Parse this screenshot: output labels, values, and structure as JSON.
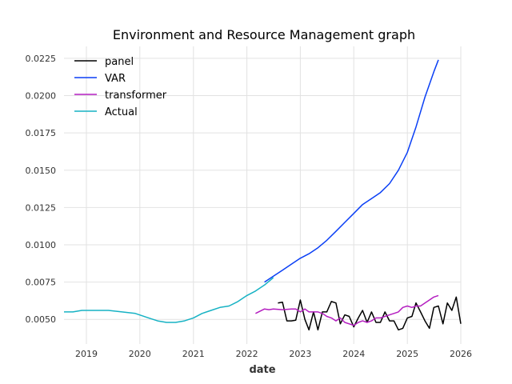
{
  "chart_data": {
    "type": "line",
    "title": "Environment and Resource Management graph",
    "xlabel": "date",
    "ylabel": "",
    "x_axis": {
      "type": "date",
      "xlim": [
        "2018-08-01",
        "2026-01-01"
      ],
      "ticks": [
        {
          "value": "2019-01-01",
          "label": "2019"
        },
        {
          "value": "2020-01-01",
          "label": "2020"
        },
        {
          "value": "2021-01-01",
          "label": "2021"
        },
        {
          "value": "2022-01-01",
          "label": "2022"
        },
        {
          "value": "2023-01-01",
          "label": "2023"
        },
        {
          "value": "2024-01-01",
          "label": "2024"
        },
        {
          "value": "2025-01-01",
          "label": "2025"
        },
        {
          "value": "2026-01-01",
          "label": "2026"
        }
      ]
    },
    "y_axis": {
      "ylim": [
        0.00335,
        0.0233
      ],
      "ticks": [
        {
          "value": 0.005,
          "label": "0.0050"
        },
        {
          "value": 0.0075,
          "label": "0.0075"
        },
        {
          "value": 0.01,
          "label": "0.0100"
        },
        {
          "value": 0.0125,
          "label": "0.0125"
        },
        {
          "value": 0.015,
          "label": "0.0150"
        },
        {
          "value": 0.0175,
          "label": "0.0175"
        },
        {
          "value": 0.02,
          "label": "0.0200"
        },
        {
          "value": 0.0225,
          "label": "0.0225"
        }
      ]
    },
    "grid": true,
    "legend_position": "top-left",
    "series": [
      {
        "name": "panel",
        "color": "#000000",
        "points": [
          [
            "2022-08-01",
            0.0061
          ],
          [
            "2022-09-01",
            0.00615
          ],
          [
            "2022-10-01",
            0.0049
          ],
          [
            "2022-11-01",
            0.0049
          ],
          [
            "2022-12-01",
            0.00495
          ],
          [
            "2023-01-01",
            0.0063
          ],
          [
            "2023-02-01",
            0.005
          ],
          [
            "2023-03-01",
            0.0043
          ],
          [
            "2023-04-01",
            0.0055
          ],
          [
            "2023-05-01",
            0.0043
          ],
          [
            "2023-06-01",
            0.0055
          ],
          [
            "2023-07-01",
            0.0055
          ],
          [
            "2023-08-01",
            0.0062
          ],
          [
            "2023-09-01",
            0.0061
          ],
          [
            "2023-10-01",
            0.0047
          ],
          [
            "2023-11-01",
            0.0053
          ],
          [
            "2023-12-01",
            0.0052
          ],
          [
            "2024-01-01",
            0.0045
          ],
          [
            "2024-02-01",
            0.0051
          ],
          [
            "2024-03-01",
            0.0056
          ],
          [
            "2024-04-01",
            0.0048
          ],
          [
            "2024-05-01",
            0.0055
          ],
          [
            "2024-06-01",
            0.0048
          ],
          [
            "2024-07-01",
            0.0048
          ],
          [
            "2024-08-01",
            0.0055
          ],
          [
            "2024-09-01",
            0.0049
          ],
          [
            "2024-10-01",
            0.0049
          ],
          [
            "2024-11-01",
            0.0043
          ],
          [
            "2024-12-01",
            0.0044
          ],
          [
            "2025-01-01",
            0.0051
          ],
          [
            "2025-02-01",
            0.0052
          ],
          [
            "2025-03-01",
            0.0061
          ],
          [
            "2025-04-01",
            0.0055
          ],
          [
            "2025-05-01",
            0.0049
          ],
          [
            "2025-06-01",
            0.0044
          ],
          [
            "2025-07-01",
            0.0058
          ],
          [
            "2025-08-01",
            0.0059
          ],
          [
            "2025-09-01",
            0.0047
          ],
          [
            "2025-10-01",
            0.0061
          ],
          [
            "2025-11-01",
            0.0056
          ],
          [
            "2025-12-01",
            0.0065
          ],
          [
            "2026-01-01",
            0.0047
          ]
        ]
      },
      {
        "name": "VAR",
        "color": "#0a3ff5",
        "points": [
          [
            "2022-05-01",
            0.0075
          ],
          [
            "2022-07-01",
            0.0079
          ],
          [
            "2022-09-01",
            0.0083
          ],
          [
            "2022-11-01",
            0.0087
          ],
          [
            "2023-01-01",
            0.0091
          ],
          [
            "2023-03-01",
            0.0094
          ],
          [
            "2023-05-01",
            0.0098
          ],
          [
            "2023-07-01",
            0.0103
          ],
          [
            "2023-09-01",
            0.0109
          ],
          [
            "2023-11-01",
            0.0115
          ],
          [
            "2024-01-01",
            0.0121
          ],
          [
            "2024-03-01",
            0.0127
          ],
          [
            "2024-05-01",
            0.0131
          ],
          [
            "2024-07-01",
            0.0135
          ],
          [
            "2024-09-01",
            0.0141
          ],
          [
            "2024-11-01",
            0.015
          ],
          [
            "2025-01-01",
            0.0162
          ],
          [
            "2025-03-01",
            0.0179
          ],
          [
            "2025-05-01",
            0.0199
          ],
          [
            "2025-07-01",
            0.0216
          ],
          [
            "2025-08-01",
            0.0224
          ]
        ]
      },
      {
        "name": "transformer",
        "color": "#b41ec0",
        "points": [
          [
            "2022-03-01",
            0.0054
          ],
          [
            "2022-05-01",
            0.0057
          ],
          [
            "2022-06-01",
            0.00565
          ],
          [
            "2022-07-01",
            0.0057
          ],
          [
            "2022-09-01",
            0.00565
          ],
          [
            "2022-11-01",
            0.0057
          ],
          [
            "2022-12-01",
            0.0057
          ],
          [
            "2023-01-01",
            0.0055
          ],
          [
            "2023-02-01",
            0.0057
          ],
          [
            "2023-03-01",
            0.0055
          ],
          [
            "2023-05-01",
            0.0055
          ],
          [
            "2023-06-01",
            0.0054
          ],
          [
            "2023-07-01",
            0.0052
          ],
          [
            "2023-08-01",
            0.0051
          ],
          [
            "2023-09-01",
            0.0049
          ],
          [
            "2023-10-01",
            0.0051
          ],
          [
            "2023-11-01",
            0.0048
          ],
          [
            "2024-01-01",
            0.0046
          ],
          [
            "2024-02-01",
            0.0048
          ],
          [
            "2024-03-01",
            0.0049
          ],
          [
            "2024-04-01",
            0.0048
          ],
          [
            "2024-05-01",
            0.0049
          ],
          [
            "2024-06-01",
            0.0051
          ],
          [
            "2024-07-01",
            0.0051
          ],
          [
            "2024-08-01",
            0.0052
          ],
          [
            "2024-09-01",
            0.0053
          ],
          [
            "2024-10-01",
            0.0054
          ],
          [
            "2024-11-01",
            0.0055
          ],
          [
            "2024-12-01",
            0.0058
          ],
          [
            "2025-01-01",
            0.0059
          ],
          [
            "2025-02-01",
            0.0058
          ],
          [
            "2025-03-01",
            0.0059
          ],
          [
            "2025-04-01",
            0.0059
          ],
          [
            "2025-05-01",
            0.0061
          ],
          [
            "2025-06-01",
            0.0063
          ],
          [
            "2025-07-01",
            0.0065
          ],
          [
            "2025-08-01",
            0.0066
          ]
        ]
      },
      {
        "name": "Actual",
        "color": "#17b2c4",
        "points": [
          [
            "2018-08-01",
            0.0055
          ],
          [
            "2018-10-01",
            0.0055
          ],
          [
            "2018-12-01",
            0.0056
          ],
          [
            "2019-03-01",
            0.0056
          ],
          [
            "2019-06-01",
            0.0056
          ],
          [
            "2019-09-01",
            0.0055
          ],
          [
            "2019-12-01",
            0.0054
          ],
          [
            "2020-03-01",
            0.0051
          ],
          [
            "2020-05-01",
            0.0049
          ],
          [
            "2020-07-01",
            0.0048
          ],
          [
            "2020-09-01",
            0.0048
          ],
          [
            "2020-11-01",
            0.0049
          ],
          [
            "2021-01-01",
            0.0051
          ],
          [
            "2021-03-01",
            0.0054
          ],
          [
            "2021-05-01",
            0.0056
          ],
          [
            "2021-07-01",
            0.0058
          ],
          [
            "2021-09-01",
            0.0059
          ],
          [
            "2021-11-01",
            0.0062
          ],
          [
            "2022-01-01",
            0.0066
          ],
          [
            "2022-03-01",
            0.0069
          ],
          [
            "2022-05-01",
            0.0073
          ],
          [
            "2022-07-01",
            0.0078
          ]
        ]
      }
    ]
  }
}
